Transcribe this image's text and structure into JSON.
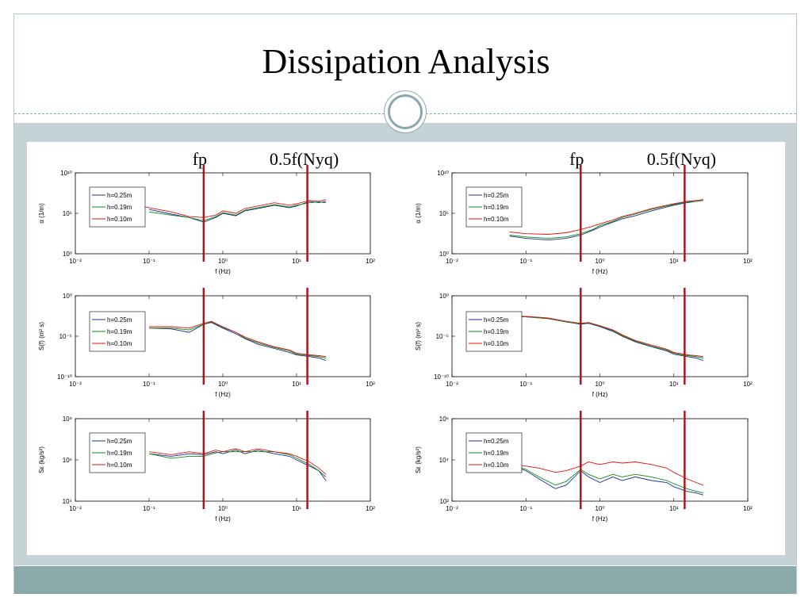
{
  "slide": {
    "title": "Dissipation Analysis"
  },
  "colors": {
    "accent": "#8aa9ab",
    "band": "#c5d3d7",
    "marker_line": "#b0141a",
    "s1": "#1f2f8f",
    "s2": "#0a8a1a",
    "s3": "#e01010"
  },
  "annotations": {
    "fp": "fp",
    "nyq": "0.5f(Nyq)"
  },
  "chart_data": [
    {
      "type": "line",
      "column": "left",
      "panel": "alpha",
      "ylabel": "α (1/m)",
      "xlabel": "f (Hz)",
      "xlog": true,
      "ylog": true,
      "xlim": [
        0.01,
        100
      ],
      "ylim": [
        1,
        10000000000.0
      ],
      "xticks": [
        "10⁻²",
        "10⁻¹",
        "10⁰",
        "10¹",
        "10²"
      ],
      "yticks": [
        "10⁰",
        "10⁵",
        "10¹⁰"
      ],
      "legend": "top-left",
      "vlines": {
        "fp": 0.55,
        "nyq": 14
      },
      "series": [
        {
          "name": "h=0.25m",
          "x": [
            0.1,
            0.2,
            0.35,
            0.55,
            0.8,
            1,
            1.5,
            2,
            3,
            5,
            8,
            10,
            15,
            20,
            25
          ],
          "y": [
            300000.0,
            80000.0,
            30000.0,
            8000.0,
            30000.0,
            100000.0,
            50000.0,
            200000.0,
            400000.0,
            1000000.0,
            500000.0,
            800000.0,
            3000000.0,
            2000000.0,
            3000000.0
          ]
        },
        {
          "name": "h=0.19m",
          "x": [
            0.1,
            0.2,
            0.35,
            0.55,
            0.8,
            1,
            1.5,
            2,
            3,
            5,
            8,
            10,
            15,
            20,
            25
          ],
          "y": [
            150000.0,
            60000.0,
            30000.0,
            12000.0,
            40000.0,
            120000.0,
            60000.0,
            250000.0,
            500000.0,
            1200000.0,
            600000.0,
            1000000.0,
            2000000.0,
            2500000.0,
            2000000.0
          ]
        },
        {
          "name": "h=0.10m",
          "x": [
            0.08,
            0.1,
            0.2,
            0.35,
            0.55,
            0.8,
            1,
            1.5,
            2,
            3,
            5,
            8,
            10,
            15,
            20,
            25
          ],
          "y": [
            800000.0,
            500000.0,
            150000.0,
            40000.0,
            30000.0,
            60000.0,
            200000.0,
            100000.0,
            400000.0,
            800000.0,
            2000000.0,
            1000000.0,
            1500000.0,
            4000000.0,
            3000000.0,
            5000000.0
          ]
        }
      ]
    },
    {
      "type": "line",
      "column": "left",
      "panel": "spectrum",
      "ylabel": "S(f) (m² s)",
      "xlabel": "f (Hz)",
      "xlog": true,
      "ylog": true,
      "xlim": [
        0.01,
        100
      ],
      "ylim": [
        1e-10,
        1
      ],
      "xticks": [
        "10⁻²",
        "10⁻¹",
        "10⁰",
        "10¹",
        "10²"
      ],
      "yticks": [
        "10⁻¹⁰",
        "10⁻⁵",
        "10⁰"
      ],
      "legend": "top-left",
      "vlines": {
        "fp": 0.55,
        "nyq": 14
      },
      "series": [
        {
          "name": "h=0.25m",
          "x": [
            0.1,
            0.2,
            0.35,
            0.55,
            0.7,
            1,
            1.5,
            2,
            3,
            5,
            8,
            10,
            15,
            20,
            25
          ],
          "y": [
            0.0001,
            8e-05,
            3e-05,
            0.0003,
            0.0005,
            0.0001,
            2e-05,
            5e-06,
            1e-06,
            3e-07,
            1e-07,
            5e-08,
            3e-08,
            2e-08,
            1e-08
          ]
        },
        {
          "name": "h=0.19m",
          "x": [
            0.1,
            0.2,
            0.35,
            0.55,
            0.7,
            1,
            1.5,
            2,
            3,
            5,
            8,
            10,
            15,
            20,
            25
          ],
          "y": [
            0.0001,
            0.0001,
            6e-05,
            0.0003,
            0.0006,
            0.00012,
            3e-05,
            6e-06,
            1.5e-06,
            4e-07,
            1.5e-07,
            6e-08,
            4e-08,
            3e-08,
            2e-08
          ]
        },
        {
          "name": "h=0.10m",
          "x": [
            0.1,
            0.2,
            0.35,
            0.55,
            0.7,
            1,
            1.5,
            2,
            3,
            5,
            8,
            10,
            15,
            20,
            25
          ],
          "y": [
            0.00015,
            0.00015,
            0.0001,
            0.0004,
            0.0007,
            0.00015,
            3e-05,
            8e-06,
            2e-06,
            5e-07,
            2e-07,
            8e-08,
            5e-08,
            4e-08,
            3e-08
          ]
        }
      ]
    },
    {
      "type": "line",
      "column": "left",
      "panel": "dissipation",
      "ylabel": "Sε (kg/s²)",
      "xlabel": "f (Hz)",
      "xlog": true,
      "ylog": true,
      "xlim": [
        0.01,
        100
      ],
      "ylim": [
        10000.0,
        100000000.0
      ],
      "xticks": [
        "10⁻²",
        "10⁻¹",
        "10⁰",
        "10¹",
        "10²"
      ],
      "yticks": [
        "10⁴",
        "10⁶",
        "10⁸"
      ],
      "legend": "top-left",
      "vlines": {
        "fp": 0.55,
        "nyq": 14
      },
      "series": [
        {
          "name": "h=0.25m",
          "x": [
            0.1,
            0.2,
            0.35,
            0.55,
            0.8,
            1,
            1.5,
            2,
            3,
            5,
            8,
            10,
            15,
            20,
            25
          ],
          "y": [
            2000000.0,
            1500000.0,
            2000000.0,
            1800000.0,
            2500000.0,
            2000000.0,
            3000000.0,
            2000000.0,
            3000000.0,
            2000000.0,
            1500000.0,
            1000000.0,
            500000.0,
            300000.0,
            100000.0
          ]
        },
        {
          "name": "h=0.19m",
          "x": [
            0.1,
            0.2,
            0.35,
            0.55,
            0.8,
            1,
            1.5,
            2,
            3,
            5,
            8,
            10,
            15,
            20,
            25
          ],
          "y": [
            2000000.0,
            1200000.0,
            1500000.0,
            1500000.0,
            2200000.0,
            2500000.0,
            2500000.0,
            2500000.0,
            2500000.0,
            2500000.0,
            1800000.0,
            1200000.0,
            600000.0,
            300000.0,
            150000.0
          ]
        },
        {
          "name": "h=0.10m",
          "x": [
            0.1,
            0.2,
            0.35,
            0.55,
            0.8,
            1,
            1.5,
            2,
            3,
            5,
            8,
            10,
            15,
            20,
            25
          ],
          "y": [
            2500000.0,
            1800000.0,
            2500000.0,
            2000000.0,
            3000000.0,
            2500000.0,
            3500000.0,
            2500000.0,
            3500000.0,
            2500000.0,
            2000000.0,
            1500000.0,
            800000.0,
            400000.0,
            200000.0
          ]
        }
      ]
    },
    {
      "type": "line",
      "column": "right",
      "panel": "alpha",
      "ylabel": "α (1/m)",
      "xlabel": "f (Hz)",
      "xlog": true,
      "ylog": true,
      "xlim": [
        0.01,
        100
      ],
      "ylim": [
        1,
        10000000000.0
      ],
      "xticks": [
        "10⁻²",
        "10⁻¹",
        "10⁰",
        "10¹",
        "10²"
      ],
      "yticks": [
        "10⁰",
        "10⁵",
        "10¹⁰"
      ],
      "legend": "top-left",
      "vlines": {
        "fp": 0.55,
        "nyq": 14
      },
      "series": [
        {
          "name": "h=0.25m",
          "x": [
            0.06,
            0.1,
            0.2,
            0.35,
            0.55,
            0.8,
            1,
            1.5,
            2,
            3,
            5,
            8,
            10,
            15,
            20,
            25
          ],
          "y": [
            150,
            80,
            50,
            80,
            200,
            800,
            2000,
            8000,
            20000.0,
            50000.0,
            200000.0,
            600000.0,
            1000000.0,
            2000000.0,
            3000000.0,
            4000000.0
          ]
        },
        {
          "name": "h=0.19m",
          "x": [
            0.06,
            0.1,
            0.2,
            0.35,
            0.55,
            0.8,
            1,
            1.5,
            2,
            3,
            5,
            8,
            10,
            15,
            20,
            25
          ],
          "y": [
            200,
            120,
            80,
            120,
            300,
            1000,
            3000,
            10000.0,
            30000.0,
            80000.0,
            300000.0,
            800000.0,
            1200000.0,
            2500000.0,
            3000000.0,
            4000000.0
          ]
        },
        {
          "name": "h=0.10m",
          "x": [
            0.06,
            0.1,
            0.2,
            0.35,
            0.55,
            0.8,
            1,
            1.5,
            2,
            3,
            5,
            8,
            10,
            15,
            20,
            25
          ],
          "y": [
            500,
            300,
            250,
            400,
            1000,
            2500,
            5000,
            15000.0,
            40000.0,
            100000.0,
            400000.0,
            1000000.0,
            1500000.0,
            3000000.0,
            4000000.0,
            5000000.0
          ]
        }
      ]
    },
    {
      "type": "line",
      "column": "right",
      "panel": "spectrum",
      "ylabel": "S(f) (m² s)",
      "xlabel": "f (Hz)",
      "xlog": true,
      "ylog": true,
      "xlim": [
        0.01,
        100
      ],
      "ylim": [
        1e-10,
        1
      ],
      "xticks": [
        "10⁻²",
        "10⁻¹",
        "10⁰",
        "10¹",
        "10²"
      ],
      "yticks": [
        "10⁻¹⁰",
        "10⁻⁵",
        "10⁰"
      ],
      "legend": "top-left",
      "vlines": {
        "fp": 0.55,
        "nyq": 14
      },
      "series": [
        {
          "name": "h=0.25m",
          "x": [
            0.06,
            0.1,
            0.2,
            0.35,
            0.55,
            0.7,
            1,
            1.5,
            2,
            3,
            5,
            8,
            10,
            15,
            20,
            25
          ],
          "y": [
            0.003,
            0.0025,
            0.0015,
            0.0006,
            0.0003,
            0.0004,
            0.00015,
            4e-05,
            1e-05,
            2e-06,
            5e-07,
            1.5e-07,
            6e-08,
            3e-08,
            2e-08,
            1e-08
          ]
        },
        {
          "name": "h=0.19m",
          "x": [
            0.06,
            0.1,
            0.2,
            0.35,
            0.55,
            0.7,
            1,
            1.5,
            2,
            3,
            5,
            8,
            10,
            15,
            20,
            25
          ],
          "y": [
            0.003,
            0.0025,
            0.0015,
            0.0006,
            0.00035,
            0.00045,
            0.00018,
            5e-05,
            1.2e-05,
            2.5e-06,
            6e-07,
            2e-07,
            8e-08,
            4e-08,
            3e-08,
            2e-08
          ]
        },
        {
          "name": "h=0.10m",
          "x": [
            0.06,
            0.1,
            0.2,
            0.35,
            0.55,
            0.7,
            1,
            1.5,
            2,
            3,
            5,
            8,
            10,
            15,
            20,
            25
          ],
          "y": [
            0.003,
            0.0028,
            0.0018,
            0.0007,
            0.0004,
            0.0005,
            0.0002,
            6e-05,
            1.5e-05,
            3e-06,
            8e-07,
            2.5e-07,
            1e-07,
            5e-08,
            4e-08,
            3e-08
          ]
        }
      ]
    },
    {
      "type": "line",
      "column": "right",
      "panel": "dissipation",
      "ylabel": "Sε (kg/s²)",
      "xlabel": "f (Hz)",
      "xlog": true,
      "ylog": true,
      "xlim": [
        0.01,
        100
      ],
      "ylim": [
        100,
        1000000.0
      ],
      "xticks": [
        "10⁻²",
        "10⁻¹",
        "10⁰",
        "10¹",
        "10²"
      ],
      "yticks": [
        "10²",
        "10⁴",
        "10⁶"
      ],
      "legend": "top-left",
      "vlines": {
        "fp": 0.55,
        "nyq": 14
      },
      "series": [
        {
          "name": "h=0.25m",
          "x": [
            0.06,
            0.1,
            0.15,
            0.25,
            0.35,
            0.55,
            0.7,
            1,
            1.5,
            2,
            3,
            5,
            8,
            10,
            15,
            20,
            25
          ],
          "y": [
            6000,
            3000,
            1200,
            400,
            600,
            3000,
            1500,
            800,
            1500,
            1000,
            1500,
            1000,
            800,
            500,
            300,
            250,
            200
          ]
        },
        {
          "name": "h=0.19m",
          "x": [
            0.06,
            0.1,
            0.15,
            0.25,
            0.35,
            0.55,
            0.7,
            1,
            1.5,
            2,
            3,
            5,
            8,
            10,
            15,
            20,
            25
          ],
          "y": [
            6000,
            3500,
            1500,
            600,
            900,
            3500,
            2000,
            1200,
            2000,
            1500,
            2000,
            1500,
            1000,
            700,
            400,
            300,
            250
          ]
        },
        {
          "name": "h=0.10m",
          "x": [
            0.06,
            0.1,
            0.15,
            0.25,
            0.35,
            0.55,
            0.7,
            1,
            1.5,
            2,
            3,
            5,
            8,
            10,
            15,
            20,
            25
          ],
          "y": [
            6000,
            5000,
            4000,
            2500,
            3000,
            5000,
            8000,
            6000,
            8000,
            7000,
            8000,
            6000,
            4000,
            2500,
            1200,
            800,
            600
          ]
        }
      ]
    }
  ]
}
